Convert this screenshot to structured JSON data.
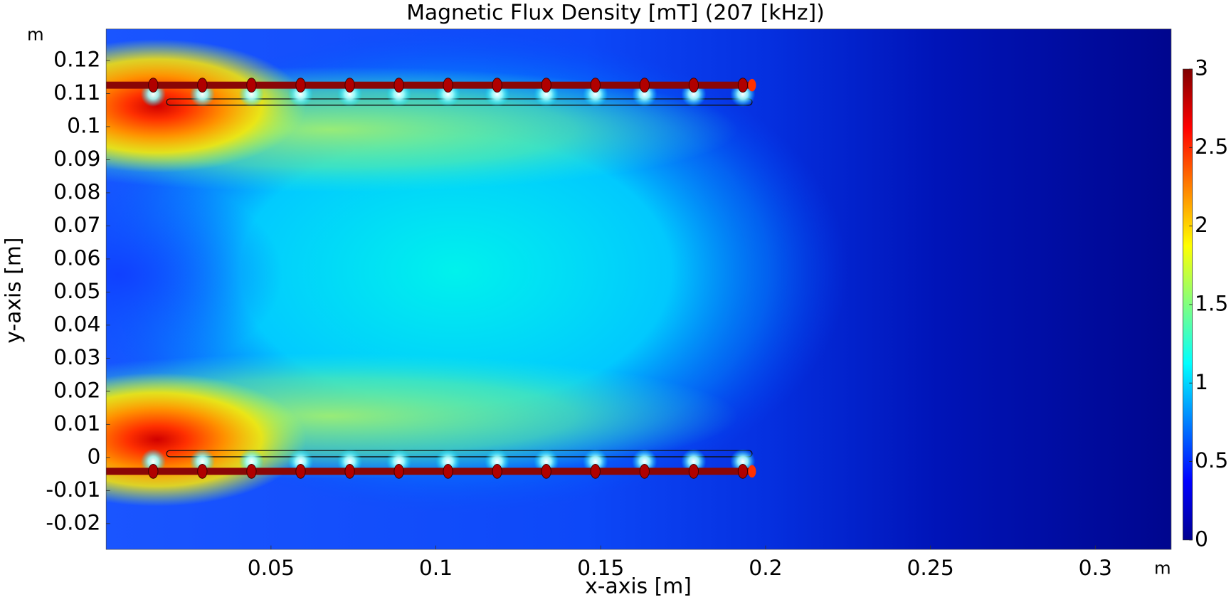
{
  "chart_data": {
    "type": "heatmap",
    "title": "Magnetic Flux Density [mT] (207 [kHz])",
    "xlabel": "x-axis [m]",
    "ylabel": "y-axis [m]",
    "x_unit": "m",
    "y_unit": "m",
    "xlim": [
      0,
      0.323
    ],
    "ylim": [
      -0.0278,
      0.1295
    ],
    "xticks": [
      0.05,
      0.1,
      0.15,
      0.2,
      0.25,
      0.3
    ],
    "yticks": [
      -0.02,
      -0.01,
      0,
      0.01,
      0.02,
      0.03,
      0.04,
      0.05,
      0.06,
      0.07,
      0.08,
      0.09,
      0.1,
      0.11,
      0.12
    ],
    "colorbar": {
      "clim": [
        0,
        3
      ],
      "ticks": [
        0,
        0.5,
        1,
        1.5,
        2,
        2.5,
        3
      ],
      "colors": [
        "#00008f",
        "#0000ff",
        "#0080ff",
        "#00ffff",
        "#80ff80",
        "#ffff00",
        "#ff8000",
        "#ff0000",
        "#800000"
      ]
    }
  }
}
